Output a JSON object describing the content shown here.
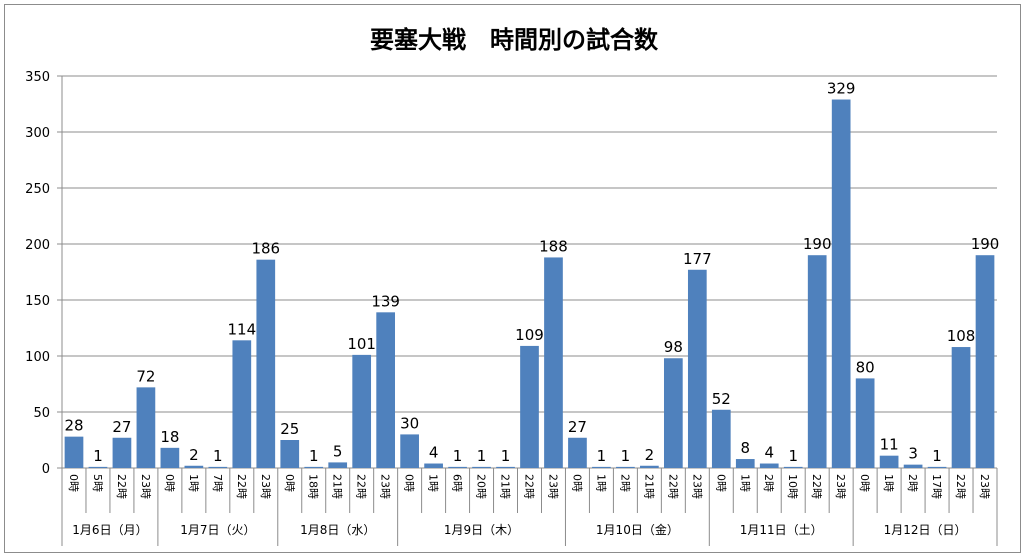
{
  "chart_data": {
    "type": "bar",
    "title": "要塞大戦　時間別の試合数",
    "ylim": [
      0,
      350
    ],
    "yticks": [
      0,
      50,
      100,
      150,
      200,
      250,
      300,
      350
    ],
    "grid": true,
    "bar_color": "#4f81bd",
    "groups": [
      {
        "label": "1月6日（月）",
        "categories": [
          "0時",
          "5時",
          "22時",
          "23時"
        ],
        "values": [
          28,
          1,
          27,
          72
        ]
      },
      {
        "label": "1月7日（火）",
        "categories": [
          "0時",
          "1時",
          "7時",
          "22時",
          "23時"
        ],
        "values": [
          18,
          2,
          1,
          114,
          186
        ]
      },
      {
        "label": "1月8日（水）",
        "categories": [
          "0時",
          "18時",
          "21時",
          "22時",
          "23時"
        ],
        "values": [
          25,
          1,
          5,
          101,
          139
        ]
      },
      {
        "label": "1月9日（木）",
        "categories": [
          "0時",
          "1時",
          "6時",
          "20時",
          "21時",
          "22時",
          "23時"
        ],
        "values": [
          30,
          4,
          1,
          1,
          1,
          109,
          188
        ]
      },
      {
        "label": "1月10日（金）",
        "categories": [
          "0時",
          "1時",
          "2時",
          "21時",
          "22時",
          "23時"
        ],
        "values": [
          27,
          1,
          1,
          2,
          98,
          177
        ]
      },
      {
        "label": "1月11日（土）",
        "categories": [
          "0時",
          "1時",
          "2時",
          "10時",
          "22時",
          "23時"
        ],
        "values": [
          52,
          8,
          4,
          1,
          190,
          329
        ]
      },
      {
        "label": "1月12日（日）",
        "categories": [
          "0時",
          "1時",
          "2時",
          "17時",
          "22時",
          "23時"
        ],
        "values": [
          80,
          11,
          3,
          1,
          108,
          190
        ]
      }
    ]
  }
}
